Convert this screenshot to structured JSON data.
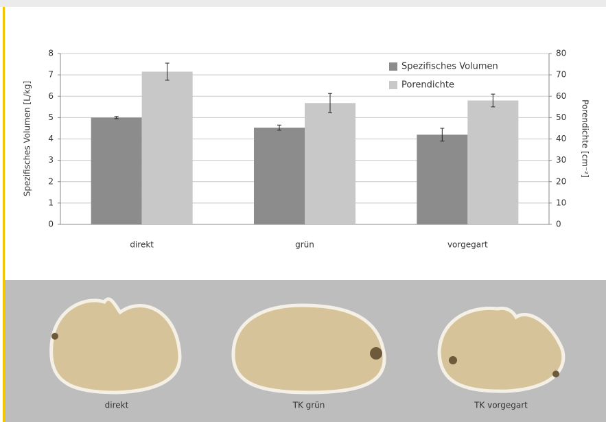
{
  "chart_data": {
    "type": "bar",
    "y_label": "Spezifisches Volumen [L/kg]",
    "y2_label": "Porendichte [cm⁻²]",
    "categories": [
      "direkt",
      "grün",
      "vorgegart"
    ],
    "series": [
      {
        "name": "Spezifisches Volumen",
        "color": "#8c8c8c",
        "values": [
          5.0,
          4.53,
          4.2
        ],
        "errors": [
          0.05,
          0.12,
          0.3
        ]
      },
      {
        "name": "Porendichte",
        "color": "#c8c8c8",
        "axis": "y2",
        "values": [
          71.5,
          56.8,
          58.0
        ],
        "errors": [
          4.0,
          4.5,
          3.0
        ]
      }
    ],
    "ylim": [
      0,
      8
    ],
    "yticks": [
      0,
      1,
      2,
      3,
      4,
      5,
      6,
      7,
      8
    ],
    "y2lim": [
      0,
      80
    ],
    "y2ticks": [
      0,
      10,
      20,
      30,
      40,
      50,
      60,
      70,
      80
    ],
    "grid": true,
    "legend": "top-right"
  },
  "photo_panel": {
    "captions": [
      "direkt",
      "TK grün",
      "TK vorgegart"
    ]
  }
}
